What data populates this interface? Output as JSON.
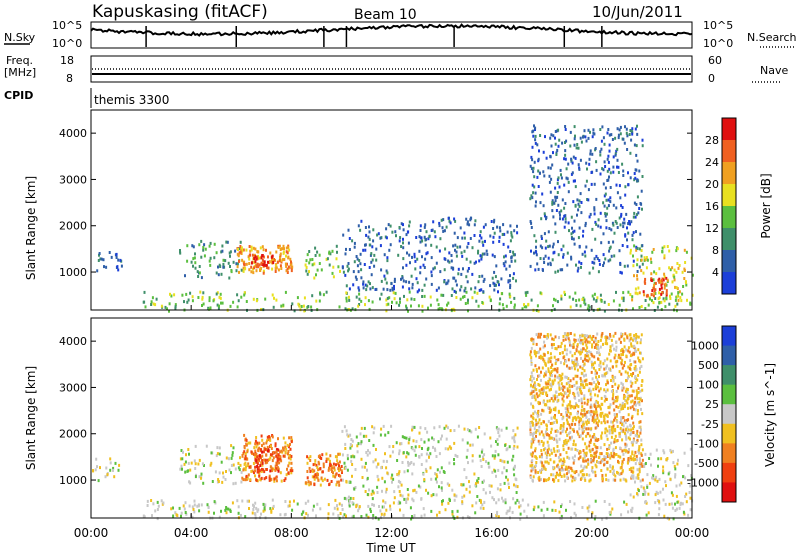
{
  "header": {
    "site": "Kapuskasing (fitACF)",
    "beam": "Beam 10",
    "date": "10/Jun/2011"
  },
  "noise_panel": {
    "left_label": "N.Sky",
    "left_ticks": [
      "10^5",
      "10^0"
    ],
    "right_label": "N.Search",
    "right_ticks": [
      "10^5",
      "10^0"
    ]
  },
  "freq_panel": {
    "left_label_1": "Freq.",
    "left_label_2": "[MHz]",
    "left_ticks": [
      "18",
      "8"
    ],
    "right_label": "Nave",
    "right_ticks": [
      "60",
      "0"
    ]
  },
  "cpid": {
    "label": "CPID",
    "value": "themis 3300"
  },
  "colors": {
    "scale_power": [
      "#1c3fd8",
      "#2f5fa8",
      "#3f8f6a",
      "#5bbf3f",
      "#e8e020",
      "#f0a020",
      "#f06020",
      "#e01010"
    ],
    "scale_velocity": [
      "#1c3fd8",
      "#2f5fa8",
      "#3f8f6a",
      "#5bbf3f",
      "#c8c8c8",
      "#f0c020",
      "#f08020",
      "#f04010",
      "#e01010"
    ]
  },
  "chart_data": [
    {
      "type": "heatmap",
      "name": "power",
      "xlabel": "",
      "ylabel": "Slant Range [km]",
      "x_range": [
        "00:00",
        "00:00"
      ],
      "ylim": [
        180,
        4500
      ],
      "yticks": [
        "1000",
        "2000",
        "3000",
        "4000"
      ],
      "colorbar": {
        "label": "Power [dB]",
        "ticks": [
          "4",
          "8",
          "12",
          "16",
          "20",
          "24",
          "28"
        ]
      },
      "regions": [
        {
          "t": [
            0.0,
            1.2
          ],
          "r": [
            1000,
            1500
          ],
          "level": 1
        },
        {
          "t": [
            3.5,
            6.0
          ],
          "r": [
            900,
            1700
          ],
          "level": 2
        },
        {
          "t": [
            5.8,
            8.0
          ],
          "r": [
            1000,
            1600
          ],
          "level": 5
        },
        {
          "t": [
            6.3,
            7.3
          ],
          "r": [
            1100,
            1400
          ],
          "level": 7
        },
        {
          "t": [
            8.5,
            10.0
          ],
          "r": [
            900,
            1600
          ],
          "level": 3
        },
        {
          "t": [
            2.0,
            24.0
          ],
          "r": [
            180,
            600
          ],
          "level": 3
        },
        {
          "t": [
            21.5,
            24.0
          ],
          "r": [
            400,
            1600
          ],
          "level": 4
        },
        {
          "t": [
            22.0,
            23.0
          ],
          "r": [
            500,
            900
          ],
          "level": 6
        },
        {
          "t": [
            10.0,
            17.0
          ],
          "r": [
            600,
            2200
          ],
          "level": 1
        },
        {
          "t": [
            17.5,
            22.0
          ],
          "r": [
            1000,
            4200
          ],
          "level": 1
        }
      ]
    },
    {
      "type": "heatmap",
      "name": "velocity",
      "xlabel": "Time UT",
      "ylabel": "Slant Range [km]",
      "xticks": [
        "00:00",
        "04:00",
        "08:00",
        "12:00",
        "16:00",
        "20:00",
        "00:00"
      ],
      "ylim": [
        180,
        4500
      ],
      "yticks": [
        "1000",
        "2000",
        "3000",
        "4000"
      ],
      "colorbar": {
        "label": "Velocity [m s^-1]",
        "ticks": [
          "1000",
          "500",
          "100",
          "25",
          "-25",
          "-100",
          "-500",
          "-1000"
        ]
      },
      "regions": [
        {
          "t": [
            0.0,
            1.2
          ],
          "r": [
            1000,
            1500
          ],
          "level": 4
        },
        {
          "t": [
            3.5,
            6.0
          ],
          "r": [
            900,
            1800
          ],
          "level": 4
        },
        {
          "t": [
            6.0,
            8.0
          ],
          "r": [
            1000,
            2000
          ],
          "level": 6
        },
        {
          "t": [
            6.5,
            7.5
          ],
          "r": [
            1200,
            1700
          ],
          "level": 7
        },
        {
          "t": [
            8.5,
            10.0
          ],
          "r": [
            900,
            1600
          ],
          "level": 6
        },
        {
          "t": [
            2.0,
            24.0
          ],
          "r": [
            180,
            600
          ],
          "level": 4
        },
        {
          "t": [
            21.5,
            24.0
          ],
          "r": [
            500,
            1700
          ],
          "level": 4
        },
        {
          "t": [
            10.0,
            17.0
          ],
          "r": [
            600,
            2200
          ],
          "level": 4
        },
        {
          "t": [
            17.5,
            22.0
          ],
          "r": [
            1000,
            4200
          ],
          "level": 5
        }
      ]
    }
  ]
}
